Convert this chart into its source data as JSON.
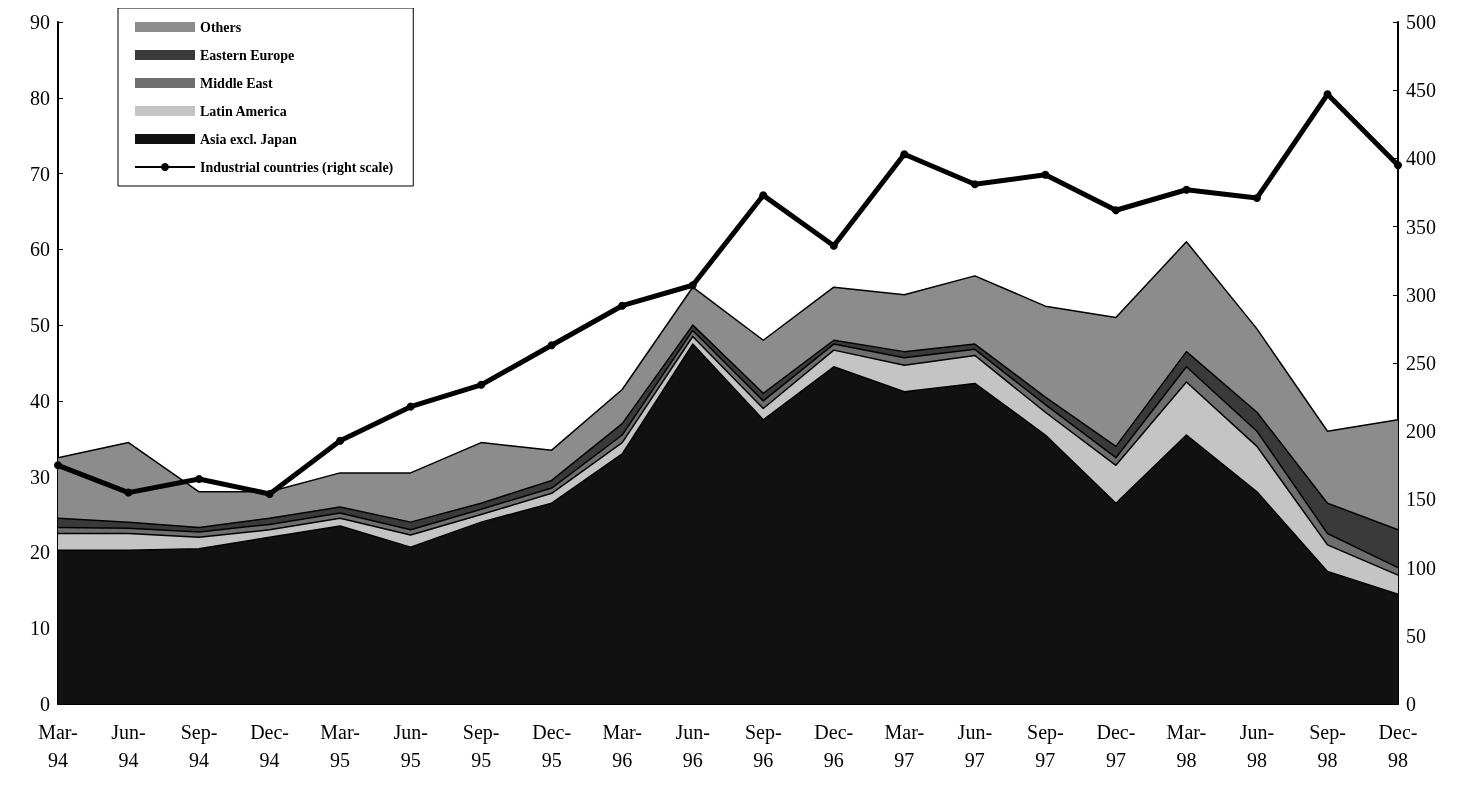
{
  "chart_data": {
    "type": "area",
    "stacked": true,
    "categories": [
      "Mar-94",
      "Jun-94",
      "Sep-94",
      "Dec-94",
      "Mar-95",
      "Jun-95",
      "Sep-95",
      "Dec-95",
      "Mar-96",
      "Jun-96",
      "Sep-96",
      "Dec-96",
      "Mar-97",
      "Jun-97",
      "Sep-97",
      "Dec-97",
      "Mar-98",
      "Jun-98",
      "Sep-98",
      "Dec-98"
    ],
    "series": [
      {
        "name": "Asia excl. Japan",
        "color": "#111111",
        "values": [
          20.3,
          20.3,
          20.5,
          22,
          23.5,
          20.7,
          24,
          26.5,
          33,
          47.5,
          37.5,
          44.5,
          41.2,
          42.3,
          35.5,
          26.5,
          35.5,
          28,
          17.5,
          14.5
        ]
      },
      {
        "name": "Latin America",
        "color": "#c4c4c4",
        "values": [
          2.2,
          2.2,
          1.5,
          1,
          1,
          1.6,
          1,
          1.3,
          1.5,
          1,
          1.5,
          2.2,
          3.5,
          3.7,
          3,
          5,
          7,
          6,
          3.5,
          2.5
        ]
      },
      {
        "name": "Middle East",
        "color": "#6e6e6e",
        "values": [
          0.8,
          0.7,
          0.7,
          0.7,
          0.7,
          0.7,
          0.7,
          0.7,
          1,
          0.8,
          1,
          0.8,
          1,
          0.8,
          1,
          1,
          2,
          2,
          1.5,
          1
        ]
      },
      {
        "name": "Eastern Europe",
        "color": "#3a3a3a",
        "values": [
          1.2,
          0.8,
          0.6,
          0.8,
          0.8,
          1,
          0.8,
          1,
          1.5,
          0.7,
          1,
          0.5,
          0.8,
          0.7,
          1,
          1.5,
          2,
          2.5,
          4,
          5
        ]
      },
      {
        "name": "Others",
        "color": "#8c8c8c",
        "values": [
          8,
          10.5,
          4.7,
          3.5,
          4.5,
          6.5,
          8,
          4,
          4.5,
          5,
          7,
          7,
          7.5,
          9,
          12,
          17,
          14.5,
          11,
          9.5,
          14.5
        ]
      },
      {
        "name": "Industrial countries (right scale)",
        "type": "line",
        "axis": "y2",
        "color": "#000000",
        "marker": "circle",
        "values": [
          175,
          155,
          165,
          154,
          193,
          218,
          234,
          263,
          292,
          307,
          373,
          336,
          403,
          381,
          388,
          362,
          377,
          371,
          447,
          395
        ]
      }
    ],
    "legend": "top left",
    "ylim": [
      0,
      90
    ],
    "yticks": [
      0,
      10,
      20,
      30,
      40,
      50,
      60,
      70,
      80,
      90
    ],
    "y2lim": [
      0,
      500
    ],
    "y2ticks": [
      0,
      50,
      100,
      150,
      200,
      250,
      300,
      350,
      400,
      450,
      500
    ]
  }
}
